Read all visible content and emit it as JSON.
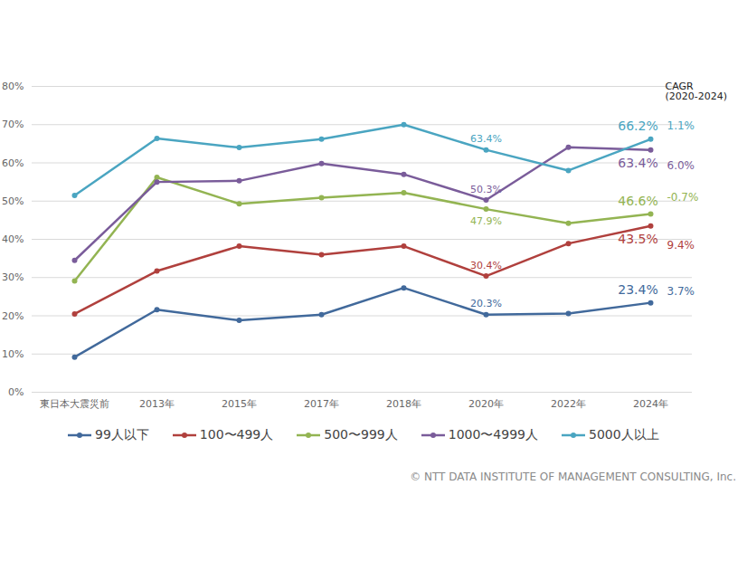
{
  "chart_data": {
    "type": "line",
    "categories": [
      "東日本大震災前",
      "2013年",
      "2015年",
      "2017年",
      "2018年",
      "2020年",
      "2022年",
      "2024年"
    ],
    "ylim": [
      0,
      80
    ],
    "yticks": [
      {
        "value": 0,
        "label": "0%"
      },
      {
        "value": 10,
        "label": "10%"
      },
      {
        "value": 20,
        "label": "20%"
      },
      {
        "value": 30,
        "label": "30%"
      },
      {
        "value": 40,
        "label": "40%"
      },
      {
        "value": 50,
        "label": "50%"
      },
      {
        "value": 60,
        "label": "60%"
      },
      {
        "value": 70,
        "label": "70%"
      },
      {
        "value": 80,
        "label": "80%"
      }
    ],
    "grid": true,
    "legend": "bottom",
    "marker": "circle",
    "cagr_title": "CAGR\n(2020-2024)",
    "caption": "© NTT DATA INSTITUTE OF MANAGEMENT CONSULTING, Inc.",
    "series": [
      {
        "name": "99人以下",
        "color": "#41699b",
        "values": [
          9.2,
          21.6,
          18.8,
          20.3,
          27.3,
          20.3,
          20.6,
          23.4
        ],
        "value_labels": [
          null,
          null,
          null,
          null,
          null,
          "20.3%",
          null,
          "23.4%"
        ],
        "cagr": "3.7%"
      },
      {
        "name": "100〜499人",
        "color": "#b0403d",
        "values": [
          20.5,
          31.7,
          38.2,
          36.0,
          38.2,
          30.4,
          38.9,
          43.5
        ],
        "value_labels": [
          null,
          null,
          null,
          null,
          null,
          "30.4%",
          null,
          "43.5%"
        ],
        "cagr": "9.4%"
      },
      {
        "name": "500〜999人",
        "color": "#93b452",
        "values": [
          29.1,
          56.2,
          49.3,
          50.9,
          52.2,
          47.9,
          44.2,
          46.6
        ],
        "value_labels": [
          null,
          null,
          null,
          null,
          null,
          "47.9%",
          null,
          "46.6%"
        ],
        "cagr": "-0.7%"
      },
      {
        "name": "1000〜4999人",
        "color": "#7a5c9a",
        "values": [
          34.5,
          55.0,
          55.3,
          59.8,
          57.0,
          50.3,
          64.1,
          63.4
        ],
        "value_labels": [
          null,
          null,
          null,
          null,
          null,
          "50.3%",
          null,
          "63.4%"
        ],
        "cagr": "6.0%"
      },
      {
        "name": "5000人以上",
        "color": "#4aa5c1",
        "values": [
          51.5,
          66.4,
          64.0,
          66.2,
          70.0,
          63.4,
          58.0,
          66.2
        ],
        "value_labels": [
          null,
          null,
          null,
          null,
          null,
          "63.4%",
          null,
          "66.2%"
        ],
        "cagr": "1.1%"
      }
    ]
  }
}
